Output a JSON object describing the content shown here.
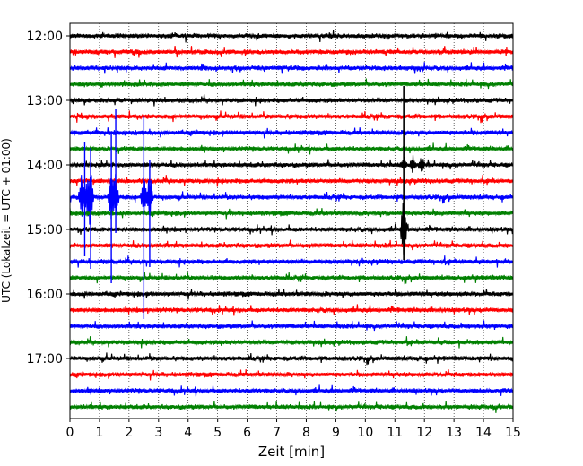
{
  "chart_data": {
    "type": "line",
    "title": "",
    "xlabel": "Zeit  [min]",
    "ylabel": "UTC (Lokalzeit = UTC + 01:00)",
    "xlim": [
      0,
      15
    ],
    "x_ticks": [
      "0",
      "1",
      "2",
      "3",
      "4",
      "5",
      "6",
      "7",
      "8",
      "9",
      "10",
      "11",
      "12",
      "13",
      "14",
      "15"
    ],
    "y_ticks": [
      "12:00",
      "13:00",
      "14:00",
      "15:00",
      "16:00",
      "17:00"
    ],
    "grid": "vertical dotted lines at each minute",
    "trace_colors": [
      "#000000",
      "#ff0000",
      "#0000ff",
      "#008000"
    ],
    "traces": [
      {
        "start": "12:00",
        "color": "#000000"
      },
      {
        "start": "12:15",
        "color": "#ff0000"
      },
      {
        "start": "12:30",
        "color": "#0000ff"
      },
      {
        "start": "12:45",
        "color": "#008000"
      },
      {
        "start": "13:00",
        "color": "#000000"
      },
      {
        "start": "13:15",
        "color": "#ff0000"
      },
      {
        "start": "13:30",
        "color": "#0000ff"
      },
      {
        "start": "13:45",
        "color": "#008000"
      },
      {
        "start": "14:00",
        "color": "#000000"
      },
      {
        "start": "14:15",
        "color": "#ff0000"
      },
      {
        "start": "14:30",
        "color": "#0000ff"
      },
      {
        "start": "14:45",
        "color": "#008000"
      },
      {
        "start": "15:00",
        "color": "#000000"
      },
      {
        "start": "15:15",
        "color": "#ff0000"
      },
      {
        "start": "15:30",
        "color": "#0000ff"
      },
      {
        "start": "15:45",
        "color": "#008000"
      },
      {
        "start": "16:00",
        "color": "#000000"
      },
      {
        "start": "16:15",
        "color": "#ff0000"
      },
      {
        "start": "16:30",
        "color": "#0000ff"
      },
      {
        "start": "16:45",
        "color": "#008000"
      },
      {
        "start": "17:00",
        "color": "#000000"
      },
      {
        "start": "17:15",
        "color": "#ff0000"
      },
      {
        "start": "17:30",
        "color": "#0000ff"
      },
      {
        "start": "17:45",
        "color": "#008000"
      }
    ],
    "events": [
      {
        "trace": "14:30",
        "x": [
          0.4,
          0.6,
          0.7,
          1.4,
          1.55,
          2.5,
          2.7
        ],
        "description": "large blue bursts"
      },
      {
        "trace": "15:00",
        "x": [
          11.3
        ],
        "description": "vertical spike near 11.3 min"
      },
      {
        "trace": "14:00",
        "x": [
          11.3,
          11.6,
          11.9
        ],
        "description": "small black bursts"
      }
    ]
  }
}
